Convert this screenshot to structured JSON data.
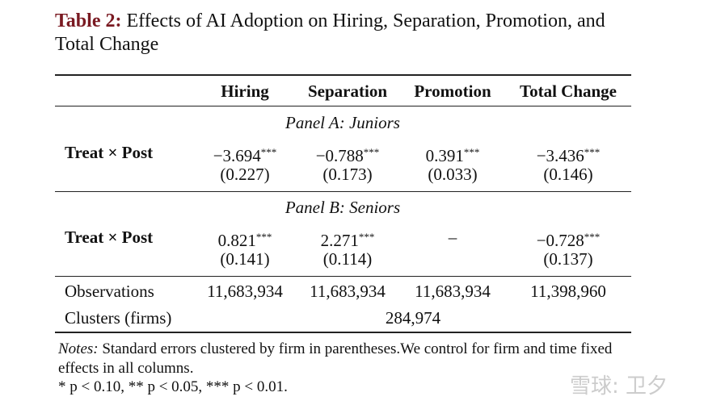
{
  "title": {
    "label": "Table 2:",
    "text": "Effects of AI Adoption on Hiring, Separation, Promotion, and Total Change"
  },
  "table": {
    "columns": [
      "Hiring",
      "Separation",
      "Promotion",
      "Total Change"
    ],
    "panels": [
      {
        "title": "Panel A: Juniors",
        "row_label": "Treat × Post",
        "estimates": [
          {
            "value": "−3.694",
            "stars": "***"
          },
          {
            "value": "−0.788",
            "stars": "***"
          },
          {
            "value": "0.391",
            "stars": "***"
          },
          {
            "value": "−3.436",
            "stars": "***"
          }
        ],
        "std_errors": [
          "(0.227)",
          "(0.173)",
          "(0.033)",
          "(0.146)"
        ]
      },
      {
        "title": "Panel B: Seniors",
        "row_label": "Treat × Post",
        "estimates": [
          {
            "value": "0.821",
            "stars": "***"
          },
          {
            "value": "2.271",
            "stars": "***"
          },
          {
            "value": "–"
          },
          {
            "value": "−0.728",
            "stars": "***"
          }
        ],
        "std_errors": [
          "(0.141)",
          "(0.114)",
          null,
          "(0.137)"
        ]
      }
    ],
    "observations": {
      "label": "Observations",
      "values": [
        "11,683,934",
        "11,683,934",
        "11,683,934",
        "11,398,960"
      ]
    },
    "clusters": {
      "label": "Clusters (firms)",
      "value": "284,974"
    }
  },
  "notes": {
    "label": "Notes:",
    "text": "Standard errors clustered by firm in parentheses.We control for firm and time fixed effects in all columns.",
    "significance": "* p < 0.10, ** p < 0.05, *** p < 0.01."
  },
  "watermark": "雪球: 卫夕"
}
